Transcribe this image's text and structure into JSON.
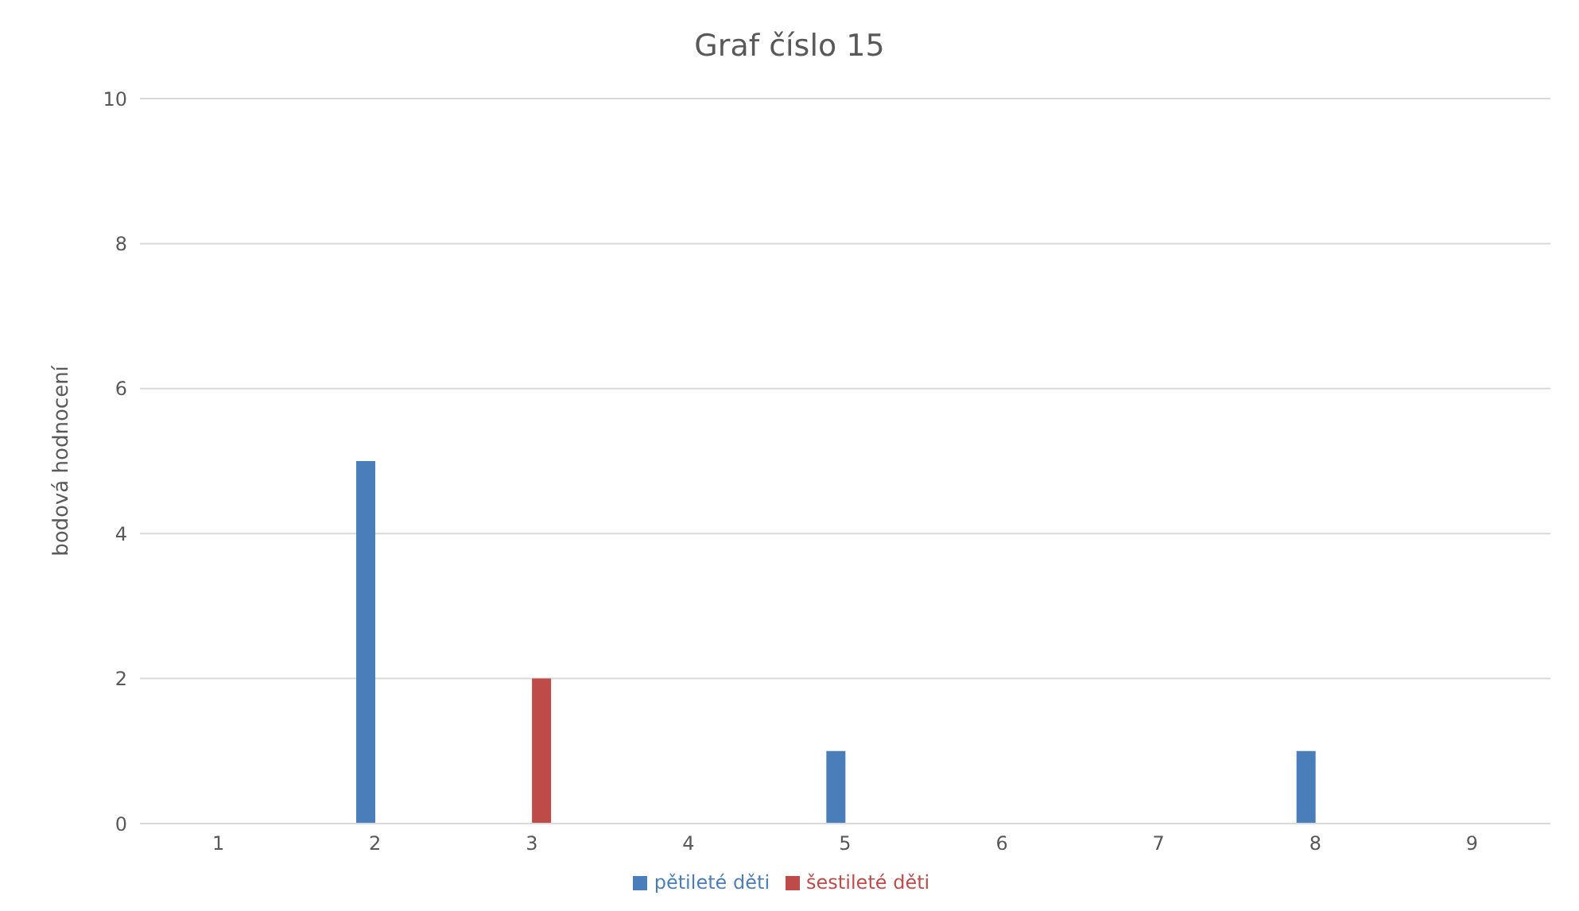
{
  "chart_data": {
    "type": "bar",
    "title": "Graf číslo 15",
    "ylabel": "bodová hodnocení",
    "categories": [
      "1",
      "2",
      "3",
      "4",
      "5",
      "6",
      "7",
      "8",
      "9"
    ],
    "series": [
      {
        "name": "pětileté děti",
        "color": "#4a7ebb",
        "values": [
          0,
          5,
          0,
          0,
          1,
          0,
          0,
          1,
          0
        ]
      },
      {
        "name": "šestileté děti",
        "color": "#be4b48",
        "values": [
          0,
          0,
          2,
          0,
          0,
          0,
          0,
          0,
          0
        ]
      }
    ],
    "ylim": [
      0,
      10
    ],
    "yticks": [
      0,
      2,
      4,
      6,
      8,
      10
    ],
    "grid": "y",
    "legend": "bottom"
  }
}
